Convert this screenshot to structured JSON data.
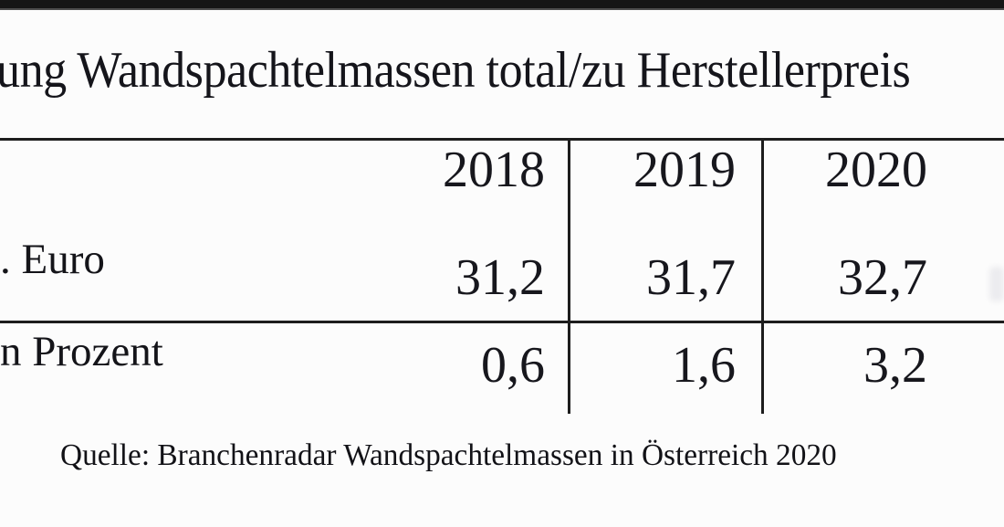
{
  "title": {
    "text": "ung Wandspachtelmassen total/zu Herstellerpreis"
  },
  "table": {
    "header_years": [
      "2018",
      "2019",
      "2020"
    ],
    "rows": [
      {
        "label": ". Euro",
        "values": [
          "31,2",
          "31,7",
          "32,7"
        ]
      },
      {
        "label": "n Prozent",
        "values": [
          "0,6",
          "1,6",
          "3,2"
        ]
      }
    ]
  },
  "source": {
    "text": "Quelle: Branchenradar Wandspachtelmassen in Österreich 2020"
  },
  "colors": {
    "background": "#fcfcfc",
    "text": "#17171c",
    "line": "#1d1d1d",
    "top_bar": "#161616"
  },
  "chart_data": {
    "type": "table",
    "title": "ung Wandspachtelmassen total/zu Herstellerpreis",
    "columns": [
      "2018",
      "2019",
      "2020"
    ],
    "rows": [
      {
        "label": ". Euro",
        "values": [
          31.2,
          31.7,
          32.7
        ],
        "display": [
          "31,2",
          "31,7",
          "32,7"
        ]
      },
      {
        "label": "n Prozent",
        "values": [
          0.6,
          1.6,
          3.2
        ],
        "display": [
          "0,6",
          "1,6",
          "3,2"
        ]
      }
    ],
    "source": "Quelle: Branchenradar Wandspachtelmassen in Österreich 2020",
    "layout": "cropped table screenshot; labels cut at left edge, title cut at both edges; vertical rules only between year columns"
  }
}
